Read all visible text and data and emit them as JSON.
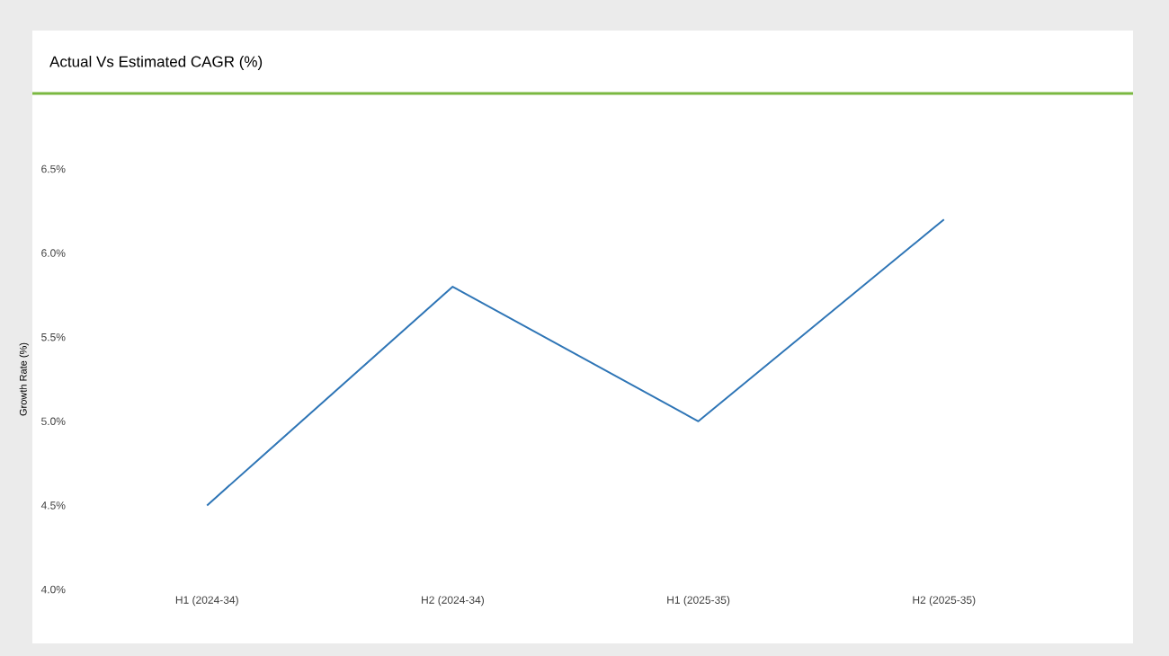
{
  "chart_data": {
    "type": "line",
    "title": "Actual Vs Estimated CAGR (%)",
    "ylabel": "Growth Rate (%)",
    "categories": [
      "H1 (2024-34)",
      "H2 (2024-34)",
      "H1 (2025-35)",
      "H2 (2025-35)"
    ],
    "series": [
      {
        "color": "#2e75b6",
        "values": [
          4.5,
          5.8,
          5.0,
          6.2
        ]
      }
    ],
    "ylim": [
      4.0,
      6.5
    ],
    "yticks": [
      {
        "value": 4.0,
        "label": "4.0%"
      },
      {
        "value": 4.5,
        "label": "4.5%"
      },
      {
        "value": 5.0,
        "label": "5.0%"
      },
      {
        "value": 5.5,
        "label": "5.5%"
      },
      {
        "value": 6.0,
        "label": "6.0%"
      },
      {
        "value": 6.5,
        "label": "6.5%"
      }
    ],
    "grid": false,
    "marker": "none",
    "line_style": "solid"
  }
}
